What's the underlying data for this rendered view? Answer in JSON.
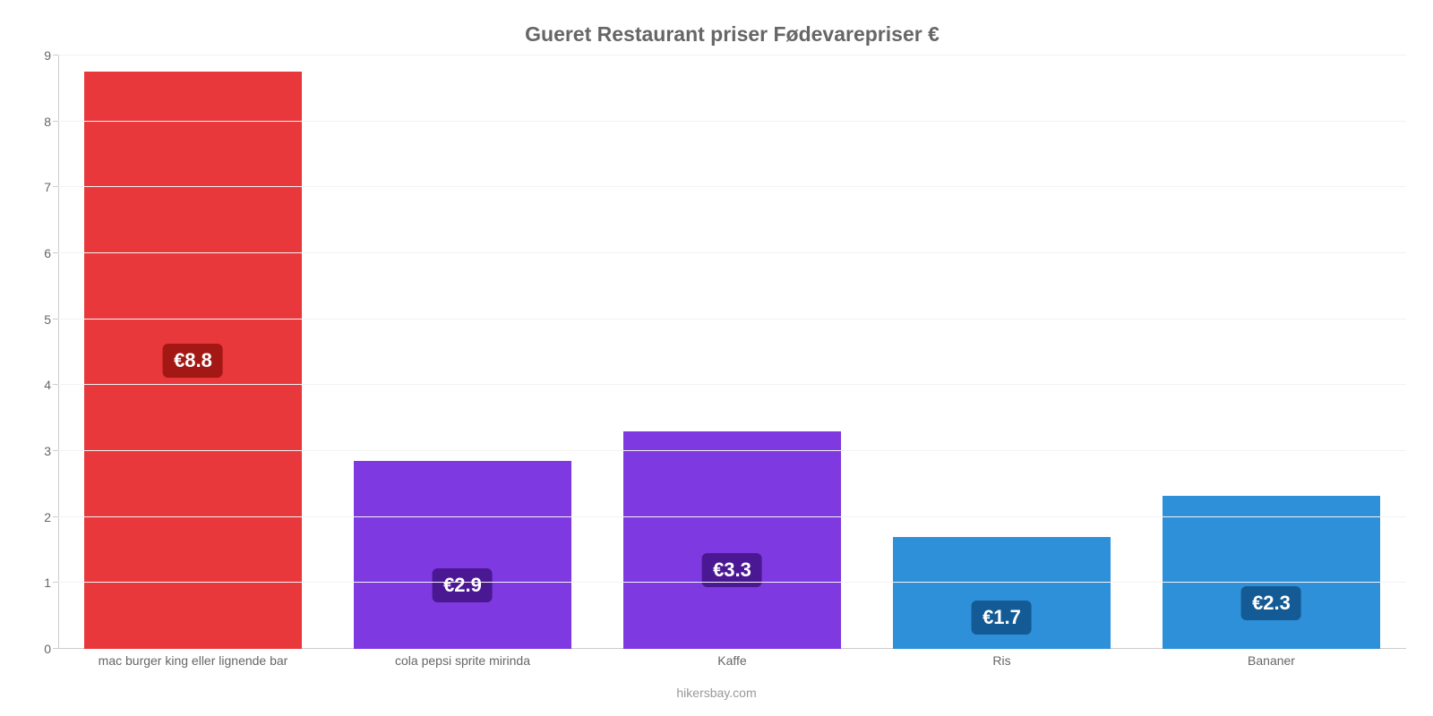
{
  "chart": {
    "type": "bar",
    "title": "Gueret Restaurant priser Fødevarepriser €",
    "title_color": "#666666",
    "title_fontsize": 23,
    "background_color": "#ffffff",
    "grid_color": "#f4f2f4",
    "axis_line_color": "#cccccc",
    "axis_label_color": "#666666",
    "tick_fontsize": 14,
    "y_axis": {
      "min": 0,
      "max": 9,
      "ticks": [
        0,
        1,
        2,
        3,
        4,
        5,
        6,
        7,
        8,
        9
      ]
    },
    "bar_width_pct": 81,
    "value_label_fontsize": 22,
    "value_label_color": "#ffffff",
    "value_label_radius": 6,
    "categories": [
      "mac burger king eller lignende bar",
      "cola pepsi sprite mirinda",
      "Kaffe",
      "Ris",
      "Bananer"
    ],
    "values": [
      8.8,
      2.9,
      3.3,
      1.7,
      2.3
    ],
    "bar_heights": [
      8.75,
      2.85,
      3.3,
      1.7,
      2.32
    ],
    "value_labels": [
      "€8.8",
      "€2.9",
      "€3.3",
      "€1.7",
      "€2.3"
    ],
    "bar_colors": [
      "#e8383b",
      "#7f39e0",
      "#7f39e0",
      "#2d90d9",
      "#2d90d9"
    ],
    "badge_colors": [
      "#a31714",
      "#4b1894",
      "#4b1894",
      "#145a94",
      "#145a94"
    ],
    "badge_vertical_pct": [
      50,
      66,
      64,
      72,
      70
    ],
    "caption": "hikersbay.com",
    "caption_color": "#999999",
    "caption_fontsize": 14
  }
}
